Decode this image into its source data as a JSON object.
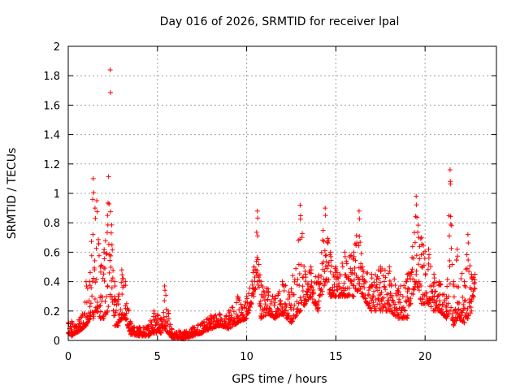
{
  "chart_data": {
    "type": "scatter",
    "title": "Day 016 of 2026, SRMTID for receiver lpal",
    "xlabel": "GPS time / hours",
    "ylabel": "SRMTID / TECUs",
    "xlim": [
      0,
      24
    ],
    "ylim": [
      0,
      2
    ],
    "x_ticks": [
      0,
      5,
      10,
      15,
      20
    ],
    "x_tick_labels": [
      "0",
      "5",
      "10",
      "15",
      "20"
    ],
    "y_ticks": [
      0,
      0.2,
      0.4,
      0.6,
      0.8,
      1,
      1.2,
      1.4,
      1.6,
      1.8,
      2
    ],
    "y_tick_labels": [
      "0",
      "0.2",
      "0.4",
      "0.6",
      "0.8",
      "1",
      "1.2",
      "1.4",
      "1.6",
      "1.8",
      "2"
    ],
    "grid": true,
    "marker": "+",
    "color": "#ff0000",
    "series": [
      {
        "name": "SRMTID",
        "envelope": [
          [
            0.0,
            0.05,
            0.12
          ],
          [
            0.2,
            0.03,
            0.13
          ],
          [
            0.4,
            0.05,
            0.1
          ],
          [
            0.6,
            0.06,
            0.14
          ],
          [
            0.8,
            0.08,
            0.18
          ],
          [
            1.0,
            0.1,
            0.4
          ],
          [
            1.2,
            0.15,
            0.4
          ],
          [
            1.4,
            0.15,
            1.1
          ],
          [
            1.5,
            0.2,
            0.9
          ],
          [
            1.6,
            0.2,
            0.95
          ],
          [
            1.8,
            0.15,
            0.5
          ],
          [
            2.0,
            0.15,
            0.6
          ],
          [
            2.2,
            0.2,
            0.85
          ],
          [
            2.35,
            0.3,
            1.84
          ],
          [
            2.45,
            0.3,
            0.65
          ],
          [
            2.6,
            0.1,
            0.4
          ],
          [
            2.8,
            0.1,
            0.3
          ],
          [
            3.0,
            0.15,
            0.48
          ],
          [
            3.2,
            0.15,
            0.4
          ],
          [
            3.5,
            0.04,
            0.12
          ],
          [
            4.0,
            0.03,
            0.09
          ],
          [
            4.5,
            0.03,
            0.1
          ],
          [
            4.8,
            0.05,
            0.2
          ],
          [
            5.2,
            0.05,
            0.15
          ],
          [
            5.4,
            0.08,
            0.37
          ],
          [
            5.6,
            0.05,
            0.2
          ],
          [
            5.8,
            0.02,
            0.08
          ],
          [
            6.5,
            0.01,
            0.06
          ],
          [
            7.0,
            0.03,
            0.09
          ],
          [
            7.5,
            0.05,
            0.12
          ],
          [
            8.0,
            0.08,
            0.17
          ],
          [
            8.5,
            0.1,
            0.18
          ],
          [
            9.0,
            0.08,
            0.2
          ],
          [
            9.5,
            0.12,
            0.3
          ],
          [
            10.0,
            0.15,
            0.3
          ],
          [
            10.4,
            0.3,
            0.5
          ],
          [
            10.6,
            0.4,
            0.88
          ],
          [
            10.8,
            0.15,
            0.4
          ],
          [
            11.2,
            0.18,
            0.35
          ],
          [
            11.6,
            0.15,
            0.3
          ],
          [
            12.0,
            0.18,
            0.4
          ],
          [
            12.5,
            0.12,
            0.35
          ],
          [
            13.0,
            0.2,
            0.92
          ],
          [
            13.3,
            0.25,
            0.45
          ],
          [
            13.6,
            0.3,
            0.5
          ],
          [
            14.0,
            0.2,
            0.4
          ],
          [
            14.4,
            0.4,
            0.9
          ],
          [
            14.7,
            0.3,
            0.6
          ],
          [
            15.0,
            0.3,
            0.5
          ],
          [
            15.5,
            0.3,
            0.6
          ],
          [
            16.0,
            0.3,
            0.6
          ],
          [
            16.3,
            0.35,
            0.88
          ],
          [
            16.5,
            0.3,
            0.5
          ],
          [
            17.0,
            0.2,
            0.45
          ],
          [
            17.5,
            0.2,
            0.5
          ],
          [
            18.0,
            0.2,
            0.5
          ],
          [
            18.5,
            0.15,
            0.35
          ],
          [
            19.0,
            0.15,
            0.45
          ],
          [
            19.5,
            0.4,
            0.98
          ],
          [
            19.8,
            0.25,
            0.7
          ],
          [
            20.2,
            0.25,
            0.62
          ],
          [
            20.5,
            0.2,
            0.45
          ],
          [
            20.8,
            0.2,
            0.4
          ],
          [
            21.2,
            0.15,
            0.3
          ],
          [
            21.4,
            0.2,
            1.16
          ],
          [
            21.6,
            0.1,
            0.4
          ],
          [
            21.8,
            0.15,
            0.62
          ],
          [
            22.2,
            0.12,
            0.4
          ],
          [
            22.4,
            0.15,
            0.72
          ],
          [
            22.6,
            0.2,
            0.45
          ],
          [
            22.8,
            0.35,
            0.45
          ]
        ]
      }
    ]
  }
}
